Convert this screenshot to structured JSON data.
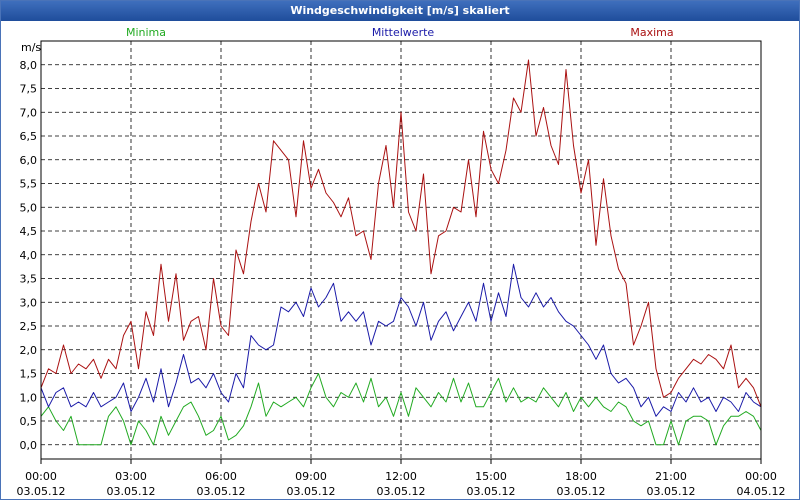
{
  "window": {
    "title": "Windgeschwindigkeit [m/s] skaliert"
  },
  "chart_data": {
    "type": "line",
    "title": "Windgeschwindigkeit [m/s] skaliert",
    "ylabel": "m/s",
    "ylim": [
      -0.3,
      8.5
    ],
    "xlim": [
      0,
      24
    ],
    "grid": true,
    "legend_placement": "top",
    "y_ticks": [
      "0,0",
      "0,5",
      "1,0",
      "1,5",
      "2,0",
      "2,5",
      "3,0",
      "3,5",
      "4,0",
      "4,5",
      "5,0",
      "5,5",
      "6,0",
      "6,5",
      "7,0",
      "7,5",
      "8,0"
    ],
    "x_ticks": [
      {
        "time": "00:00",
        "date": "03.05.12"
      },
      {
        "time": "03:00",
        "date": "03.05.12"
      },
      {
        "time": "06:00",
        "date": "03.05.12"
      },
      {
        "time": "09:00",
        "date": "03.05.12"
      },
      {
        "time": "12:00",
        "date": "03.05.12"
      },
      {
        "time": "15:00",
        "date": "03.05.12"
      },
      {
        "time": "18:00",
        "date": "03.05.12"
      },
      {
        "time": "21:00",
        "date": "03.05.12"
      },
      {
        "time": "00:00",
        "date": "04.05.12"
      }
    ],
    "series": [
      {
        "name": "Minima",
        "color": "#22aa22",
        "points": [
          [
            0,
            0.6
          ],
          [
            0.25,
            0.8
          ],
          [
            0.5,
            0.5
          ],
          [
            0.75,
            0.3
          ],
          [
            1,
            0.6
          ],
          [
            1.25,
            0
          ],
          [
            1.5,
            0
          ],
          [
            1.75,
            0
          ],
          [
            2,
            0
          ],
          [
            2.25,
            0.6
          ],
          [
            2.5,
            0.8
          ],
          [
            2.75,
            0.5
          ],
          [
            3,
            0
          ],
          [
            3.25,
            0.5
          ],
          [
            3.5,
            0.3
          ],
          [
            3.75,
            0
          ],
          [
            4,
            0.6
          ],
          [
            4.25,
            0.2
          ],
          [
            4.5,
            0.5
          ],
          [
            4.75,
            0.8
          ],
          [
            5,
            0.9
          ],
          [
            5.25,
            0.6
          ],
          [
            5.5,
            0.2
          ],
          [
            5.75,
            0.3
          ],
          [
            6,
            0.6
          ],
          [
            6.25,
            0.1
          ],
          [
            6.5,
            0.2
          ],
          [
            6.75,
            0.4
          ],
          [
            7,
            0.8
          ],
          [
            7.25,
            1.3
          ],
          [
            7.5,
            0.6
          ],
          [
            7.75,
            0.9
          ],
          [
            8,
            0.8
          ],
          [
            8.25,
            0.9
          ],
          [
            8.5,
            1.0
          ],
          [
            8.75,
            0.8
          ],
          [
            9,
            1.2
          ],
          [
            9.25,
            1.5
          ],
          [
            9.5,
            1.0
          ],
          [
            9.75,
            0.8
          ],
          [
            10,
            1.1
          ],
          [
            10.25,
            1.0
          ],
          [
            10.5,
            1.3
          ],
          [
            10.75,
            0.9
          ],
          [
            11,
            1.4
          ],
          [
            11.25,
            0.8
          ],
          [
            11.5,
            1.0
          ],
          [
            11.75,
            0.6
          ],
          [
            12,
            1.1
          ],
          [
            12.25,
            0.6
          ],
          [
            12.5,
            1.2
          ],
          [
            12.75,
            1.0
          ],
          [
            13,
            0.8
          ],
          [
            13.25,
            1.1
          ],
          [
            13.5,
            0.9
          ],
          [
            13.75,
            1.4
          ],
          [
            14,
            0.9
          ],
          [
            14.25,
            1.3
          ],
          [
            14.5,
            0.8
          ],
          [
            14.75,
            0.8
          ],
          [
            15,
            1.1
          ],
          [
            15.25,
            1.4
          ],
          [
            15.5,
            0.9
          ],
          [
            15.75,
            1.2
          ],
          [
            16,
            0.9
          ],
          [
            16.25,
            1.0
          ],
          [
            16.5,
            0.9
          ],
          [
            16.75,
            1.2
          ],
          [
            17,
            1.0
          ],
          [
            17.25,
            0.8
          ],
          [
            17.5,
            1.1
          ],
          [
            17.75,
            0.7
          ],
          [
            18,
            1.0
          ],
          [
            18.25,
            0.8
          ],
          [
            18.5,
            1.0
          ],
          [
            18.75,
            0.8
          ],
          [
            19,
            0.7
          ],
          [
            19.25,
            0.9
          ],
          [
            19.5,
            0.8
          ],
          [
            19.75,
            0.5
          ],
          [
            20,
            0.4
          ],
          [
            20.25,
            0.5
          ],
          [
            20.5,
            0
          ],
          [
            20.75,
            0
          ],
          [
            21,
            0.5
          ],
          [
            21.25,
            0
          ],
          [
            21.5,
            0.5
          ],
          [
            21.75,
            0.6
          ],
          [
            22,
            0.6
          ],
          [
            22.25,
            0.5
          ],
          [
            22.5,
            0
          ],
          [
            22.75,
            0.4
          ],
          [
            23,
            0.6
          ],
          [
            23.25,
            0.6
          ],
          [
            23.5,
            0.7
          ],
          [
            23.75,
            0.6
          ],
          [
            24,
            0.3
          ]
        ]
      },
      {
        "name": "Mittelwerte",
        "color": "#1a1aa8",
        "points": [
          [
            0,
            1.2
          ],
          [
            0.25,
            0.8
          ],
          [
            0.5,
            1.1
          ],
          [
            0.75,
            1.2
          ],
          [
            1,
            0.8
          ],
          [
            1.25,
            0.9
          ],
          [
            1.5,
            0.8
          ],
          [
            1.75,
            1.1
          ],
          [
            2,
            0.8
          ],
          [
            2.25,
            0.9
          ],
          [
            2.5,
            1.0
          ],
          [
            2.75,
            1.3
          ],
          [
            3,
            0.7
          ],
          [
            3.25,
            1.0
          ],
          [
            3.5,
            1.4
          ],
          [
            3.75,
            0.9
          ],
          [
            4,
            1.6
          ],
          [
            4.25,
            0.8
          ],
          [
            4.5,
            1.3
          ],
          [
            4.75,
            1.9
          ],
          [
            5,
            1.3
          ],
          [
            5.25,
            1.4
          ],
          [
            5.5,
            1.2
          ],
          [
            5.75,
            1.5
          ],
          [
            6,
            1.1
          ],
          [
            6.25,
            0.9
          ],
          [
            6.5,
            1.5
          ],
          [
            6.75,
            1.2
          ],
          [
            7,
            2.3
          ],
          [
            7.25,
            2.1
          ],
          [
            7.5,
            2.0
          ],
          [
            7.75,
            2.1
          ],
          [
            8,
            2.9
          ],
          [
            8.25,
            2.8
          ],
          [
            8.5,
            3.0
          ],
          [
            8.75,
            2.7
          ],
          [
            9,
            3.3
          ],
          [
            9.25,
            2.9
          ],
          [
            9.5,
            3.1
          ],
          [
            9.75,
            3.4
          ],
          [
            10,
            2.6
          ],
          [
            10.25,
            2.8
          ],
          [
            10.5,
            2.6
          ],
          [
            10.75,
            2.8
          ],
          [
            11,
            2.1
          ],
          [
            11.25,
            2.6
          ],
          [
            11.5,
            2.5
          ],
          [
            11.75,
            2.6
          ],
          [
            12,
            3.1
          ],
          [
            12.25,
            2.9
          ],
          [
            12.5,
            2.5
          ],
          [
            12.75,
            3.0
          ],
          [
            13,
            2.2
          ],
          [
            13.25,
            2.6
          ],
          [
            13.5,
            2.8
          ],
          [
            13.75,
            2.4
          ],
          [
            14,
            2.7
          ],
          [
            14.25,
            3.0
          ],
          [
            14.5,
            2.6
          ],
          [
            14.75,
            3.4
          ],
          [
            15,
            2.6
          ],
          [
            15.25,
            3.2
          ],
          [
            15.5,
            2.7
          ],
          [
            15.75,
            3.8
          ],
          [
            16,
            3.1
          ],
          [
            16.25,
            2.9
          ],
          [
            16.5,
            3.2
          ],
          [
            16.75,
            2.9
          ],
          [
            17,
            3.1
          ],
          [
            17.25,
            2.8
          ],
          [
            17.5,
            2.6
          ],
          [
            17.75,
            2.5
          ],
          [
            18,
            2.3
          ],
          [
            18.25,
            2.1
          ],
          [
            18.5,
            1.8
          ],
          [
            18.75,
            2.1
          ],
          [
            19,
            1.5
          ],
          [
            19.25,
            1.3
          ],
          [
            19.5,
            1.4
          ],
          [
            19.75,
            1.2
          ],
          [
            20,
            0.8
          ],
          [
            20.25,
            1.0
          ],
          [
            20.5,
            0.6
          ],
          [
            20.75,
            0.8
          ],
          [
            21,
            0.7
          ],
          [
            21.25,
            1.1
          ],
          [
            21.5,
            0.9
          ],
          [
            21.75,
            1.2
          ],
          [
            22,
            0.9
          ],
          [
            22.25,
            1.0
          ],
          [
            22.5,
            0.7
          ],
          [
            22.75,
            1.0
          ],
          [
            23,
            0.9
          ],
          [
            23.25,
            0.7
          ],
          [
            23.5,
            1.1
          ],
          [
            23.75,
            0.9
          ],
          [
            24,
            0.8
          ]
        ]
      },
      {
        "name": "Maxima",
        "color": "#aa1111",
        "points": [
          [
            0,
            1.2
          ],
          [
            0.25,
            1.6
          ],
          [
            0.5,
            1.5
          ],
          [
            0.75,
            2.1
          ],
          [
            1,
            1.5
          ],
          [
            1.25,
            1.7
          ],
          [
            1.5,
            1.6
          ],
          [
            1.75,
            1.8
          ],
          [
            2,
            1.4
          ],
          [
            2.25,
            1.8
          ],
          [
            2.5,
            1.6
          ],
          [
            2.75,
            2.3
          ],
          [
            3,
            2.6
          ],
          [
            3.25,
            1.6
          ],
          [
            3.5,
            2.8
          ],
          [
            3.75,
            2.3
          ],
          [
            4,
            3.8
          ],
          [
            4.25,
            2.6
          ],
          [
            4.5,
            3.6
          ],
          [
            4.75,
            2.2
          ],
          [
            5,
            2.6
          ],
          [
            5.25,
            2.7
          ],
          [
            5.5,
            2.0
          ],
          [
            5.75,
            3.5
          ],
          [
            6,
            2.5
          ],
          [
            6.25,
            2.3
          ],
          [
            6.5,
            4.1
          ],
          [
            6.75,
            3.6
          ],
          [
            7,
            4.7
          ],
          [
            7.25,
            5.5
          ],
          [
            7.5,
            4.9
          ],
          [
            7.75,
            6.4
          ],
          [
            8,
            6.2
          ],
          [
            8.25,
            6.0
          ],
          [
            8.5,
            4.8
          ],
          [
            8.75,
            6.4
          ],
          [
            9,
            5.4
          ],
          [
            9.25,
            5.8
          ],
          [
            9.5,
            5.3
          ],
          [
            9.75,
            5.1
          ],
          [
            10,
            4.8
          ],
          [
            10.25,
            5.2
          ],
          [
            10.5,
            4.4
          ],
          [
            10.75,
            4.5
          ],
          [
            11,
            3.9
          ],
          [
            11.25,
            5.5
          ],
          [
            11.5,
            6.3
          ],
          [
            11.75,
            5.0
          ],
          [
            12,
            7.0
          ],
          [
            12.25,
            4.9
          ],
          [
            12.5,
            4.5
          ],
          [
            12.75,
            5.7
          ],
          [
            13,
            3.6
          ],
          [
            13.25,
            4.4
          ],
          [
            13.5,
            4.5
          ],
          [
            13.75,
            5.0
          ],
          [
            14,
            4.9
          ],
          [
            14.25,
            6.0
          ],
          [
            14.5,
            4.8
          ],
          [
            14.75,
            6.6
          ],
          [
            15,
            5.8
          ],
          [
            15.25,
            5.5
          ],
          [
            15.5,
            6.2
          ],
          [
            15.75,
            7.3
          ],
          [
            16,
            7.0
          ],
          [
            16.25,
            8.1
          ],
          [
            16.5,
            6.5
          ],
          [
            16.75,
            7.1
          ],
          [
            17,
            6.3
          ],
          [
            17.25,
            5.9
          ],
          [
            17.5,
            7.9
          ],
          [
            17.75,
            6.3
          ],
          [
            18,
            5.3
          ],
          [
            18.25,
            6.0
          ],
          [
            18.5,
            4.2
          ],
          [
            18.75,
            5.6
          ],
          [
            19,
            4.4
          ],
          [
            19.25,
            3.7
          ],
          [
            19.5,
            3.4
          ],
          [
            19.75,
            2.1
          ],
          [
            20,
            2.5
          ],
          [
            20.25,
            3.0
          ],
          [
            20.5,
            1.6
          ],
          [
            20.75,
            1.0
          ],
          [
            21,
            1.1
          ],
          [
            21.25,
            1.4
          ],
          [
            21.5,
            1.6
          ],
          [
            21.75,
            1.8
          ],
          [
            22,
            1.7
          ],
          [
            22.25,
            1.9
          ],
          [
            22.5,
            1.8
          ],
          [
            22.75,
            1.6
          ],
          [
            23,
            2.1
          ],
          [
            23.25,
            1.2
          ],
          [
            23.5,
            1.4
          ],
          [
            23.75,
            1.2
          ],
          [
            24,
            0.8
          ]
        ]
      }
    ]
  }
}
